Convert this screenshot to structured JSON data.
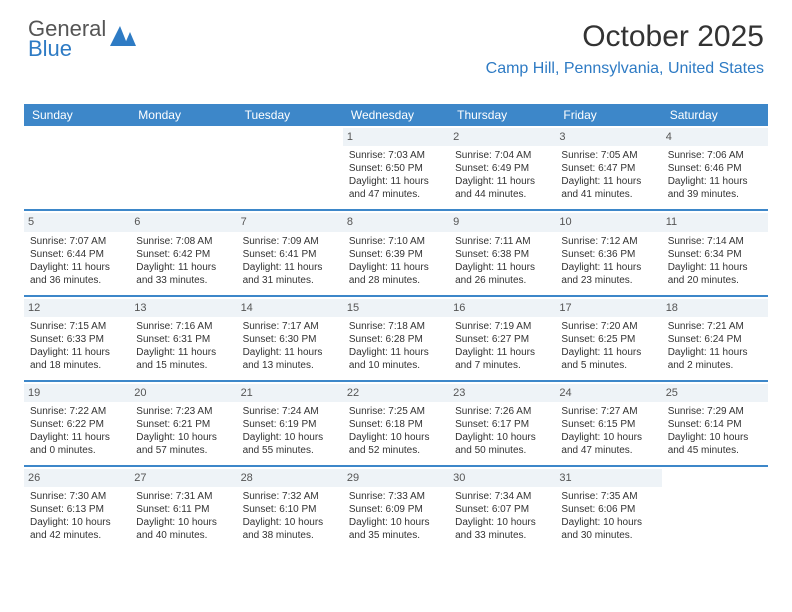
{
  "logo": {
    "line1": "General",
    "line2": "Blue",
    "icon_fill": "#2e7bc4"
  },
  "title": "October 2025",
  "location": "Camp Hill, Pennsylvania, United States",
  "colors": {
    "header_bg": "#3d87c9",
    "accent": "#2e7bc4",
    "daynum_bg": "#eef3f7",
    "border": "#3d87c9",
    "text": "#333333",
    "background": "#ffffff"
  },
  "font": {
    "title_size": 30,
    "location_size": 16,
    "dayheader_size": 12,
    "cell_size": 10
  },
  "day_headers": [
    "Sunday",
    "Monday",
    "Tuesday",
    "Wednesday",
    "Thursday",
    "Friday",
    "Saturday"
  ],
  "weeks": [
    [
      {
        "empty": true
      },
      {
        "empty": true
      },
      {
        "empty": true
      },
      {
        "day": "1",
        "sunrise": "Sunrise: 7:03 AM",
        "sunset": "Sunset: 6:50 PM",
        "daylight1": "Daylight: 11 hours",
        "daylight2": "and 47 minutes."
      },
      {
        "day": "2",
        "sunrise": "Sunrise: 7:04 AM",
        "sunset": "Sunset: 6:49 PM",
        "daylight1": "Daylight: 11 hours",
        "daylight2": "and 44 minutes."
      },
      {
        "day": "3",
        "sunrise": "Sunrise: 7:05 AM",
        "sunset": "Sunset: 6:47 PM",
        "daylight1": "Daylight: 11 hours",
        "daylight2": "and 41 minutes."
      },
      {
        "day": "4",
        "sunrise": "Sunrise: 7:06 AM",
        "sunset": "Sunset: 6:46 PM",
        "daylight1": "Daylight: 11 hours",
        "daylight2": "and 39 minutes."
      }
    ],
    [
      {
        "day": "5",
        "sunrise": "Sunrise: 7:07 AM",
        "sunset": "Sunset: 6:44 PM",
        "daylight1": "Daylight: 11 hours",
        "daylight2": "and 36 minutes."
      },
      {
        "day": "6",
        "sunrise": "Sunrise: 7:08 AM",
        "sunset": "Sunset: 6:42 PM",
        "daylight1": "Daylight: 11 hours",
        "daylight2": "and 33 minutes."
      },
      {
        "day": "7",
        "sunrise": "Sunrise: 7:09 AM",
        "sunset": "Sunset: 6:41 PM",
        "daylight1": "Daylight: 11 hours",
        "daylight2": "and 31 minutes."
      },
      {
        "day": "8",
        "sunrise": "Sunrise: 7:10 AM",
        "sunset": "Sunset: 6:39 PM",
        "daylight1": "Daylight: 11 hours",
        "daylight2": "and 28 minutes."
      },
      {
        "day": "9",
        "sunrise": "Sunrise: 7:11 AM",
        "sunset": "Sunset: 6:38 PM",
        "daylight1": "Daylight: 11 hours",
        "daylight2": "and 26 minutes."
      },
      {
        "day": "10",
        "sunrise": "Sunrise: 7:12 AM",
        "sunset": "Sunset: 6:36 PM",
        "daylight1": "Daylight: 11 hours",
        "daylight2": "and 23 minutes."
      },
      {
        "day": "11",
        "sunrise": "Sunrise: 7:14 AM",
        "sunset": "Sunset: 6:34 PM",
        "daylight1": "Daylight: 11 hours",
        "daylight2": "and 20 minutes."
      }
    ],
    [
      {
        "day": "12",
        "sunrise": "Sunrise: 7:15 AM",
        "sunset": "Sunset: 6:33 PM",
        "daylight1": "Daylight: 11 hours",
        "daylight2": "and 18 minutes."
      },
      {
        "day": "13",
        "sunrise": "Sunrise: 7:16 AM",
        "sunset": "Sunset: 6:31 PM",
        "daylight1": "Daylight: 11 hours",
        "daylight2": "and 15 minutes."
      },
      {
        "day": "14",
        "sunrise": "Sunrise: 7:17 AM",
        "sunset": "Sunset: 6:30 PM",
        "daylight1": "Daylight: 11 hours",
        "daylight2": "and 13 minutes."
      },
      {
        "day": "15",
        "sunrise": "Sunrise: 7:18 AM",
        "sunset": "Sunset: 6:28 PM",
        "daylight1": "Daylight: 11 hours",
        "daylight2": "and 10 minutes."
      },
      {
        "day": "16",
        "sunrise": "Sunrise: 7:19 AM",
        "sunset": "Sunset: 6:27 PM",
        "daylight1": "Daylight: 11 hours",
        "daylight2": "and 7 minutes."
      },
      {
        "day": "17",
        "sunrise": "Sunrise: 7:20 AM",
        "sunset": "Sunset: 6:25 PM",
        "daylight1": "Daylight: 11 hours",
        "daylight2": "and 5 minutes."
      },
      {
        "day": "18",
        "sunrise": "Sunrise: 7:21 AM",
        "sunset": "Sunset: 6:24 PM",
        "daylight1": "Daylight: 11 hours",
        "daylight2": "and 2 minutes."
      }
    ],
    [
      {
        "day": "19",
        "sunrise": "Sunrise: 7:22 AM",
        "sunset": "Sunset: 6:22 PM",
        "daylight1": "Daylight: 11 hours",
        "daylight2": "and 0 minutes."
      },
      {
        "day": "20",
        "sunrise": "Sunrise: 7:23 AM",
        "sunset": "Sunset: 6:21 PM",
        "daylight1": "Daylight: 10 hours",
        "daylight2": "and 57 minutes."
      },
      {
        "day": "21",
        "sunrise": "Sunrise: 7:24 AM",
        "sunset": "Sunset: 6:19 PM",
        "daylight1": "Daylight: 10 hours",
        "daylight2": "and 55 minutes."
      },
      {
        "day": "22",
        "sunrise": "Sunrise: 7:25 AM",
        "sunset": "Sunset: 6:18 PM",
        "daylight1": "Daylight: 10 hours",
        "daylight2": "and 52 minutes."
      },
      {
        "day": "23",
        "sunrise": "Sunrise: 7:26 AM",
        "sunset": "Sunset: 6:17 PM",
        "daylight1": "Daylight: 10 hours",
        "daylight2": "and 50 minutes."
      },
      {
        "day": "24",
        "sunrise": "Sunrise: 7:27 AM",
        "sunset": "Sunset: 6:15 PM",
        "daylight1": "Daylight: 10 hours",
        "daylight2": "and 47 minutes."
      },
      {
        "day": "25",
        "sunrise": "Sunrise: 7:29 AM",
        "sunset": "Sunset: 6:14 PM",
        "daylight1": "Daylight: 10 hours",
        "daylight2": "and 45 minutes."
      }
    ],
    [
      {
        "day": "26",
        "sunrise": "Sunrise: 7:30 AM",
        "sunset": "Sunset: 6:13 PM",
        "daylight1": "Daylight: 10 hours",
        "daylight2": "and 42 minutes."
      },
      {
        "day": "27",
        "sunrise": "Sunrise: 7:31 AM",
        "sunset": "Sunset: 6:11 PM",
        "daylight1": "Daylight: 10 hours",
        "daylight2": "and 40 minutes."
      },
      {
        "day": "28",
        "sunrise": "Sunrise: 7:32 AM",
        "sunset": "Sunset: 6:10 PM",
        "daylight1": "Daylight: 10 hours",
        "daylight2": "and 38 minutes."
      },
      {
        "day": "29",
        "sunrise": "Sunrise: 7:33 AM",
        "sunset": "Sunset: 6:09 PM",
        "daylight1": "Daylight: 10 hours",
        "daylight2": "and 35 minutes."
      },
      {
        "day": "30",
        "sunrise": "Sunrise: 7:34 AM",
        "sunset": "Sunset: 6:07 PM",
        "daylight1": "Daylight: 10 hours",
        "daylight2": "and 33 minutes."
      },
      {
        "day": "31",
        "sunrise": "Sunrise: 7:35 AM",
        "sunset": "Sunset: 6:06 PM",
        "daylight1": "Daylight: 10 hours",
        "daylight2": "and 30 minutes."
      },
      {
        "empty": true
      }
    ]
  ]
}
